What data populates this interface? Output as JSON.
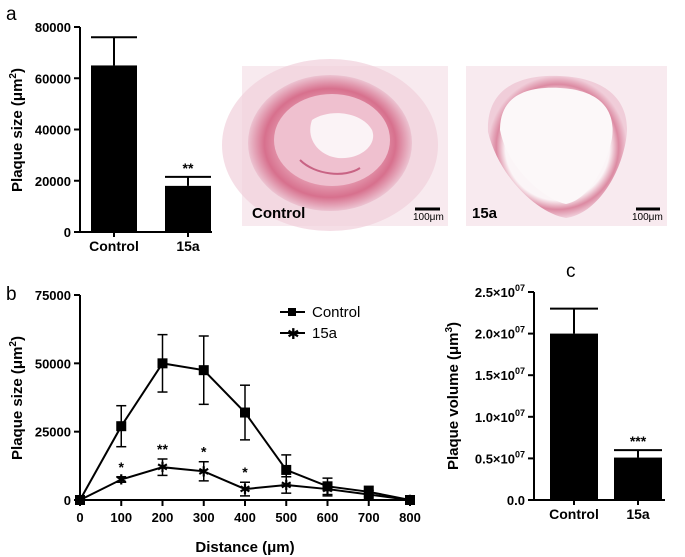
{
  "colors": {
    "bar": "#000000",
    "axis": "#000000",
    "tissue_bg": "#f7e9ee",
    "tissue_stain": "#d9758f",
    "tissue_light": "#ecbfd0",
    "lumen": "#fbf7f8"
  },
  "panel_a": {
    "letter": "a",
    "ylabel": "Plaque size (μm²)",
    "images": [
      {
        "label": "Control",
        "scale_bar": "100μm"
      },
      {
        "label": "15a",
        "scale_bar": "100μm"
      }
    ]
  },
  "panel_b": {
    "letter": "b",
    "xlabel": "Distance (μm)",
    "ylabel": "Plaque size (μm²)",
    "legend": [
      {
        "marker": "square",
        "label": "Control"
      },
      {
        "marker": "asterisk",
        "label": "15a"
      }
    ]
  },
  "panel_c": {
    "letter": "c",
    "ylabel": "Plaque volume (μm³)"
  },
  "chart_data": [
    {
      "panel": "a",
      "type": "bar",
      "categories": [
        "Control",
        "15a"
      ],
      "values": [
        65000,
        18000
      ],
      "errors": [
        11000,
        3500
      ],
      "significance": [
        "",
        "**"
      ],
      "ylabel": "Plaque size (μm²)",
      "ylim": [
        0,
        80000
      ],
      "yticks": [
        0,
        20000,
        40000,
        60000,
        80000
      ],
      "ytick_labels": [
        "0",
        "20000",
        "40000",
        "60000",
        "80000"
      ]
    },
    {
      "panel": "b",
      "type": "line",
      "x": [
        0,
        100,
        200,
        300,
        400,
        500,
        600,
        700,
        800
      ],
      "series": [
        {
          "name": "Control",
          "marker": "square",
          "values": [
            0,
            27000,
            50000,
            47500,
            32000,
            11000,
            5000,
            3000,
            0
          ],
          "errors": [
            0,
            7500,
            10500,
            12500,
            10000,
            5500,
            3000,
            2000,
            0
          ]
        },
        {
          "name": "15a",
          "marker": "asterisk",
          "values": [
            0,
            7500,
            12000,
            10500,
            4000,
            5500,
            4000,
            2000,
            0
          ],
          "errors": [
            0,
            1000,
            3000,
            3500,
            2500,
            3000,
            2500,
            1500,
            0
          ]
        }
      ],
      "significance": [
        {
          "x": 100,
          "label": "*"
        },
        {
          "x": 200,
          "label": "**"
        },
        {
          "x": 300,
          "label": "*"
        },
        {
          "x": 400,
          "label": "*"
        }
      ],
      "xlabel": "Distance (μm)",
      "ylabel": "Plaque size (μm²)",
      "xlim": [
        0,
        800
      ],
      "ylim": [
        0,
        75000
      ],
      "xticks": [
        0,
        100,
        200,
        300,
        400,
        500,
        600,
        700,
        800
      ],
      "xtick_labels": [
        "0",
        "100",
        "200",
        "300",
        "400",
        "500",
        "600",
        "700",
        "800"
      ],
      "yticks": [
        0,
        25000,
        50000,
        75000
      ],
      "ytick_labels": [
        "0",
        "25000",
        "50000",
        "75000"
      ],
      "legend_position": "top-right"
    },
    {
      "panel": "c",
      "type": "bar",
      "categories": [
        "Control",
        "15a"
      ],
      "values": [
        20000000,
        5100000
      ],
      "errors": [
        3000000,
        900000
      ],
      "significance": [
        "",
        "***"
      ],
      "ylabel": "Plaque volume (μm³)",
      "ylim": [
        0,
        25000000
      ],
      "yticks": [
        0,
        5000000,
        10000000,
        15000000,
        20000000,
        25000000
      ],
      "ytick_labels": [
        "0.0",
        "0.5×10⁰⁷",
        "1.0×10⁰⁷",
        "1.5×10⁰⁷",
        "2.0×10⁰⁷",
        "2.5×10⁰⁷"
      ]
    }
  ]
}
